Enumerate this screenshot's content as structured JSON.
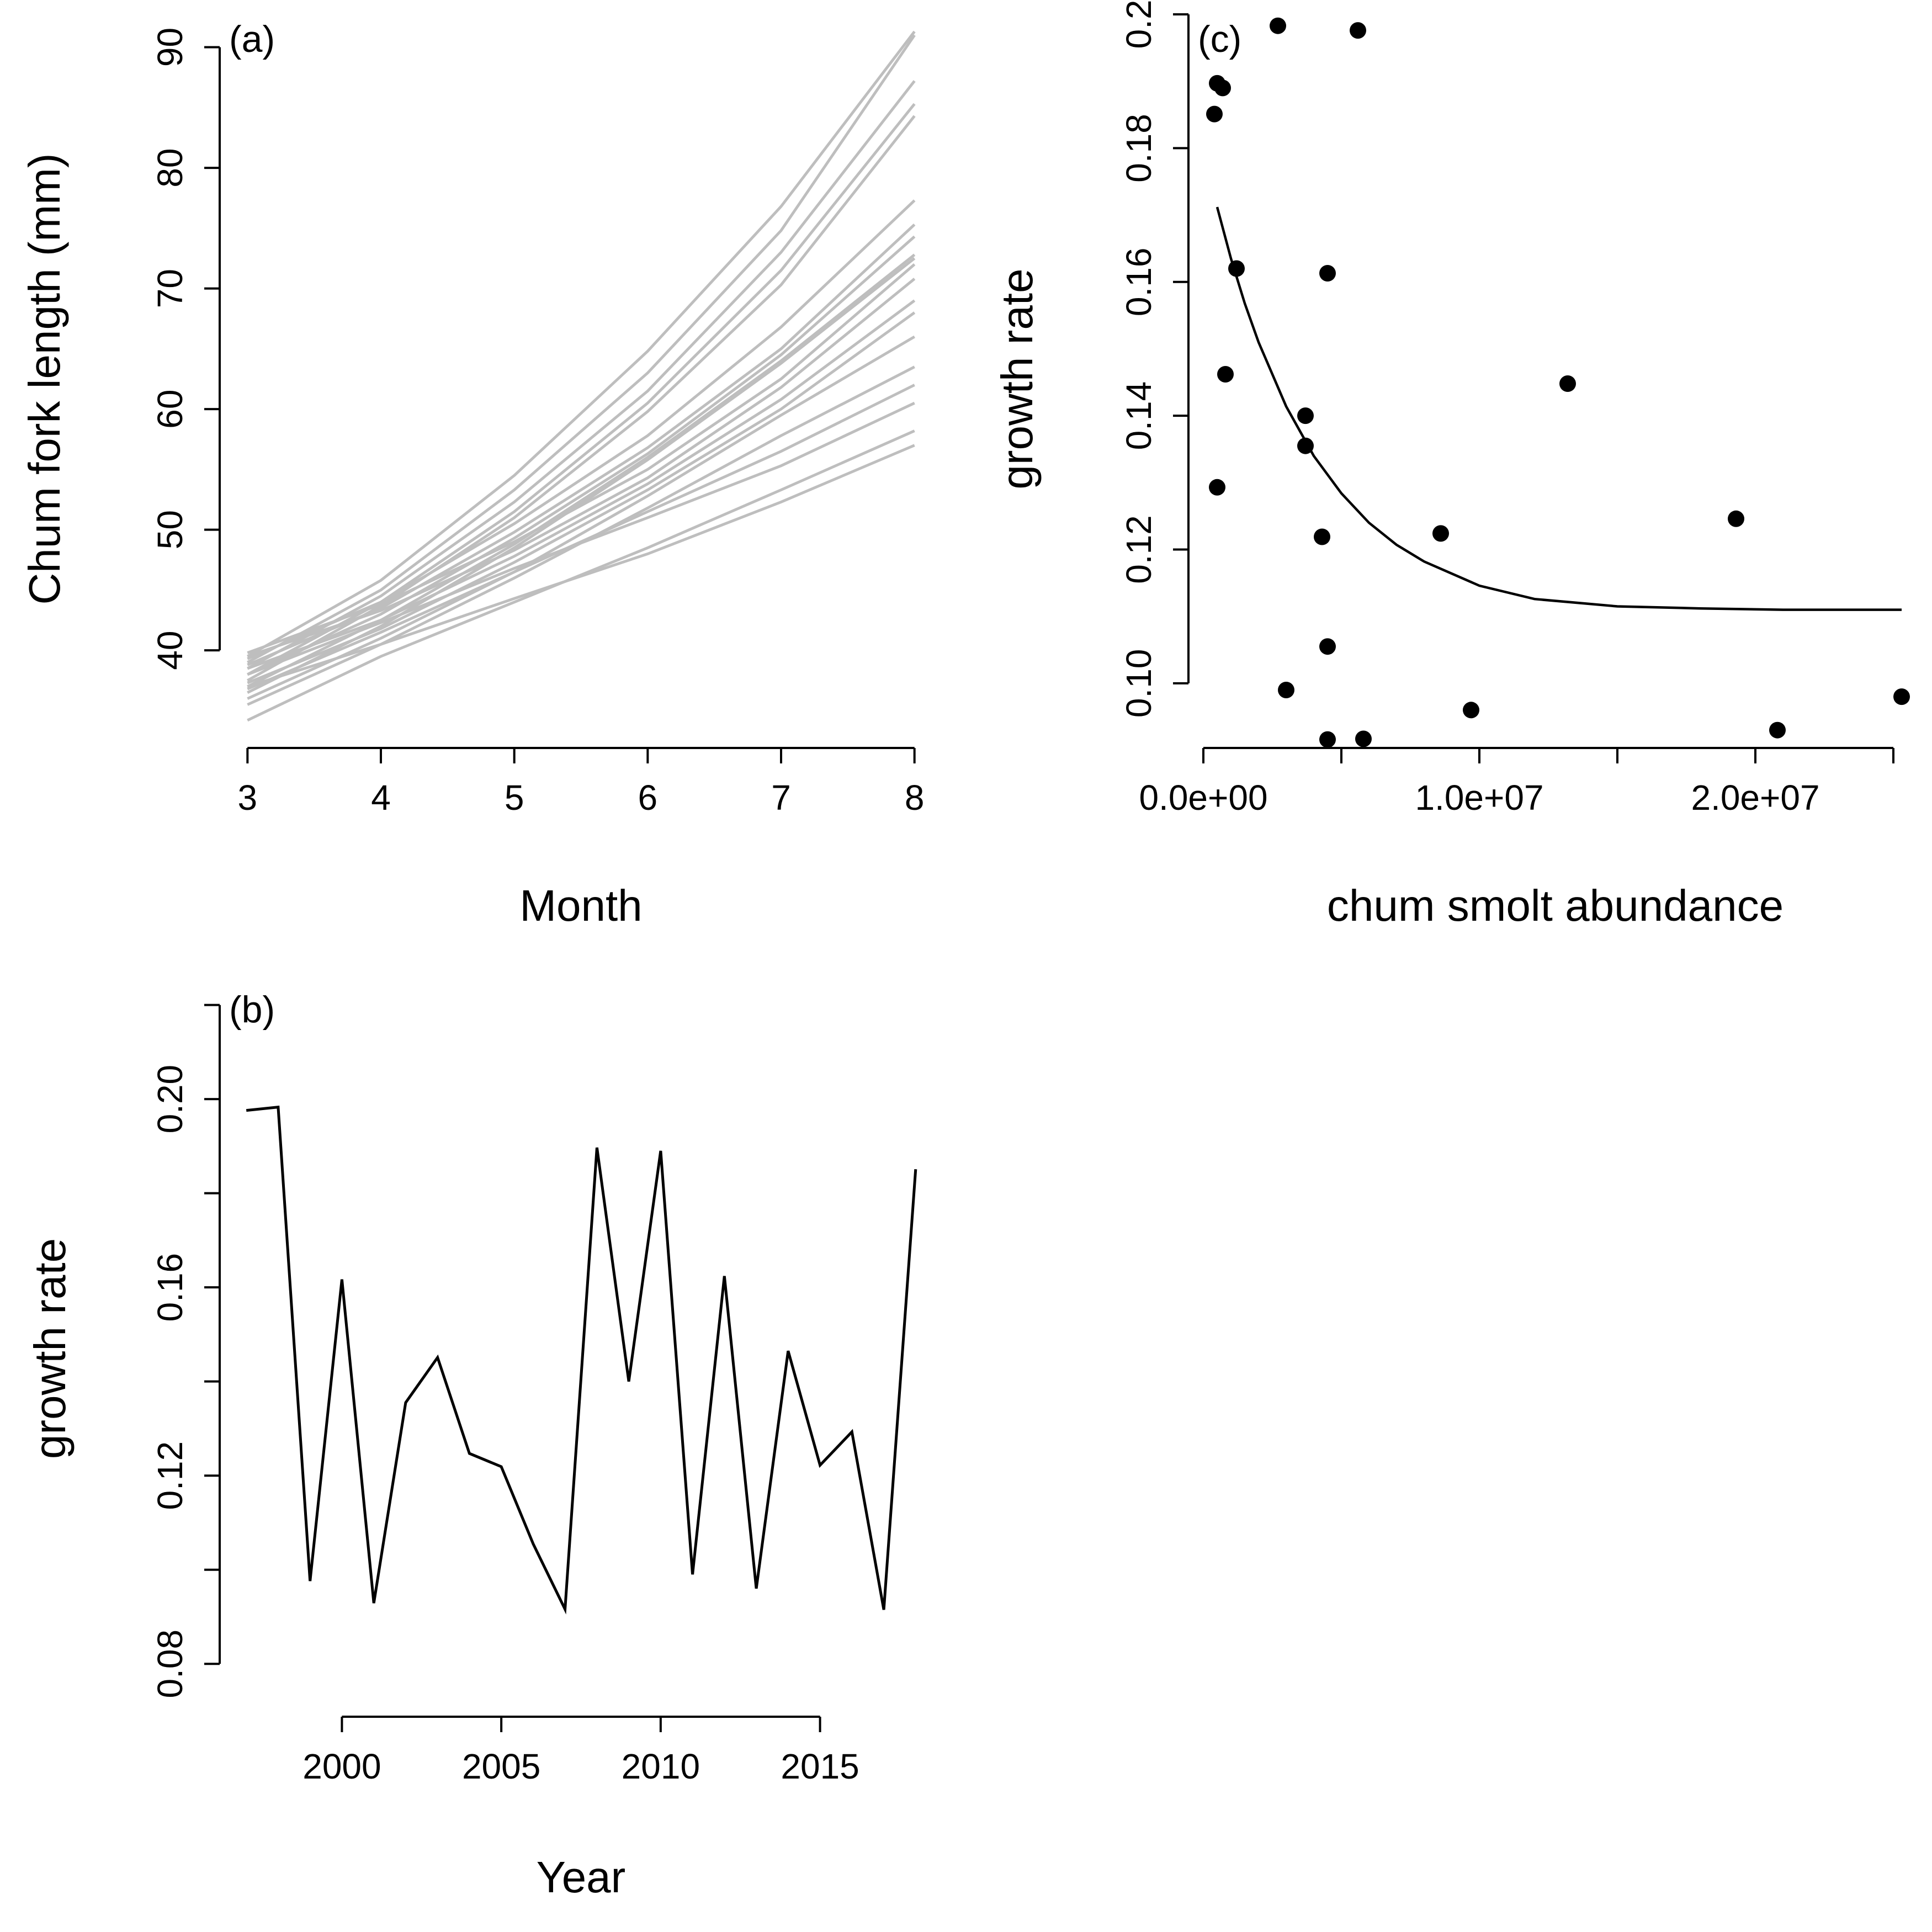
{
  "chart_data": [
    {
      "id": "a",
      "type": "line",
      "panel_label": "(a)",
      "xlabel": "Month",
      "ylabel": "Chum fork length (mm)",
      "xlim": [
        2.8,
        8.2
      ],
      "ylim": [
        32,
        93
      ],
      "x_ticks": [
        3,
        4,
        5,
        6,
        7,
        8
      ],
      "y_ticks": [
        40,
        50,
        60,
        70,
        80,
        90
      ],
      "line_color": "#bebebe",
      "x": [
        3,
        4,
        5,
        6,
        7,
        8
      ],
      "series": [
        {
          "values": [
            39.5,
            45.8,
            54.5,
            64.8,
            76.8,
            91.3
          ]
        },
        {
          "values": [
            39.0,
            45.0,
            53.3,
            63.0,
            74.8,
            91.0
          ]
        },
        {
          "values": [
            38.5,
            44.5,
            52.3,
            61.5,
            73.0,
            87.2
          ]
        },
        {
          "values": [
            38.0,
            44.0,
            51.5,
            60.5,
            71.5,
            85.3
          ]
        },
        {
          "values": [
            37.5,
            43.7,
            51.0,
            59.8,
            70.3,
            84.3
          ]
        },
        {
          "values": [
            39.3,
            44.0,
            50.5,
            57.8,
            66.8,
            77.3
          ]
        },
        {
          "values": [
            38.8,
            43.5,
            49.8,
            56.8,
            65.0,
            75.3
          ]
        },
        {
          "values": [
            38.0,
            43.0,
            49.3,
            56.3,
            64.5,
            74.3
          ]
        },
        {
          "values": [
            37.0,
            42.5,
            48.8,
            56.0,
            64.0,
            72.8
          ]
        },
        {
          "values": [
            36.5,
            42.0,
            48.5,
            55.8,
            63.8,
            72.5
          ]
        },
        {
          "values": [
            39.8,
            43.8,
            49.0,
            55.0,
            62.5,
            72.0
          ]
        },
        {
          "values": [
            39.5,
            43.3,
            48.3,
            54.3,
            61.8,
            70.8
          ]
        },
        {
          "values": [
            38.5,
            42.5,
            47.8,
            53.8,
            60.8,
            69.0
          ]
        },
        {
          "values": [
            37.3,
            41.8,
            47.3,
            53.3,
            60.0,
            68.0
          ]
        },
        {
          "values": [
            36.0,
            41.0,
            46.5,
            52.8,
            59.5,
            66.0
          ]
        },
        {
          "values": [
            35.5,
            40.5,
            46.0,
            51.8,
            57.8,
            63.5
          ]
        },
        {
          "values": [
            36.8,
            41.5,
            46.5,
            51.5,
            56.5,
            62.0
          ]
        },
        {
          "values": [
            38.0,
            42.3,
            46.8,
            51.0,
            55.3,
            60.5
          ]
        },
        {
          "values": [
            34.2,
            39.5,
            44.0,
            48.5,
            53.3,
            58.2
          ]
        },
        {
          "values": [
            37.0,
            40.5,
            44.3,
            48.0,
            52.3,
            57.0
          ]
        }
      ]
    },
    {
      "id": "b",
      "type": "line",
      "panel_label": "(b)",
      "xlabel": "Year",
      "ylabel": "growth rate",
      "xlim": [
        1996.2,
        2018.8
      ],
      "ylim": [
        0.069,
        0.225
      ],
      "x_ticks": [
        2000,
        2005,
        2010,
        2015
      ],
      "y_ticks": [
        0.08,
        0.1,
        0.12,
        0.14,
        0.16,
        0.18,
        0.2,
        0.22
      ],
      "y_tick_labels": [
        "0.08",
        "",
        "0.12",
        "",
        "0.16",
        "",
        "0.20",
        ""
      ],
      "line_color": "#000000",
      "x": [
        1997,
        1998,
        1999,
        2000,
        2001,
        2002,
        2003,
        2004,
        2005,
        2006,
        2007,
        2008,
        2009,
        2010,
        2011,
        2012,
        2013,
        2014,
        2015,
        2016,
        2017,
        2018
      ],
      "series": [
        {
          "values": [
            0.1976,
            0.1983,
            0.0976,
            0.1617,
            0.0929,
            0.1355,
            0.1451,
            0.1247,
            0.1219,
            0.1055,
            0.0916,
            0.1897,
            0.14,
            0.189,
            0.099,
            0.1624,
            0.096,
            0.1465,
            0.1222,
            0.1293,
            0.0915,
            0.1851
          ]
        }
      ]
    },
    {
      "id": "c",
      "type": "scatter",
      "panel_label": "(c)",
      "xlabel": "chum smolt abundance",
      "ylabel": "growth rate",
      "xlim": [
        -500000,
        26000000
      ],
      "ylim": [
        0.0905,
        0.2005
      ],
      "x_ticks": [
        0,
        5000000,
        10000000,
        15000000,
        20000000,
        25000000
      ],
      "x_tick_labels": [
        "0.0e+00",
        "",
        "1.0e+07",
        "",
        "2.0e+07",
        ""
      ],
      "y_ticks": [
        0.1,
        0.12,
        0.14,
        0.16,
        0.18,
        0.2
      ],
      "y_tick_labels": [
        "0.10",
        "0.12",
        "0.14",
        "0.16",
        "0.18",
        "0.20"
      ],
      "point_color": "#000000",
      "points": [
        {
          "x": 2700000,
          "y": 0.1983
        },
        {
          "x": 5600000,
          "y": 0.1976
        },
        {
          "x": 500000,
          "y": 0.1897
        },
        {
          "x": 700000,
          "y": 0.189
        },
        {
          "x": 400000,
          "y": 0.1851
        },
        {
          "x": 1200000,
          "y": 0.162
        },
        {
          "x": 4500000,
          "y": 0.1613
        },
        {
          "x": 800000,
          "y": 0.1462
        },
        {
          "x": 13200000,
          "y": 0.1448
        },
        {
          "x": 3700000,
          "y": 0.14
        },
        {
          "x": 3700000,
          "y": 0.1355
        },
        {
          "x": 500000,
          "y": 0.1293
        },
        {
          "x": 19300000,
          "y": 0.1246
        },
        {
          "x": 8600000,
          "y": 0.1224
        },
        {
          "x": 4300000,
          "y": 0.1219
        },
        {
          "x": 4500000,
          "y": 0.1055
        },
        {
          "x": 3000000,
          "y": 0.099
        },
        {
          "x": 25300000,
          "y": 0.098
        },
        {
          "x": 9700000,
          "y": 0.096
        },
        {
          "x": 20800000,
          "y": 0.093
        },
        {
          "x": 4500000,
          "y": 0.0916
        },
        {
          "x": 5800000,
          "y": 0.0917
        }
      ],
      "fit_curve": {
        "x": [
          500000,
          1000000,
          1500000,
          2000000,
          3000000,
          4000000,
          5000000,
          6000000,
          7000000,
          8000000,
          10000000,
          12000000,
          15000000,
          18000000,
          21000000,
          25300000
        ],
        "y": [
          0.1712,
          0.1635,
          0.1568,
          0.151,
          0.1414,
          0.134,
          0.1284,
          0.124,
          0.1207,
          0.1182,
          0.1146,
          0.1126,
          0.1115,
          0.1112,
          0.111,
          0.111
        ]
      }
    }
  ]
}
